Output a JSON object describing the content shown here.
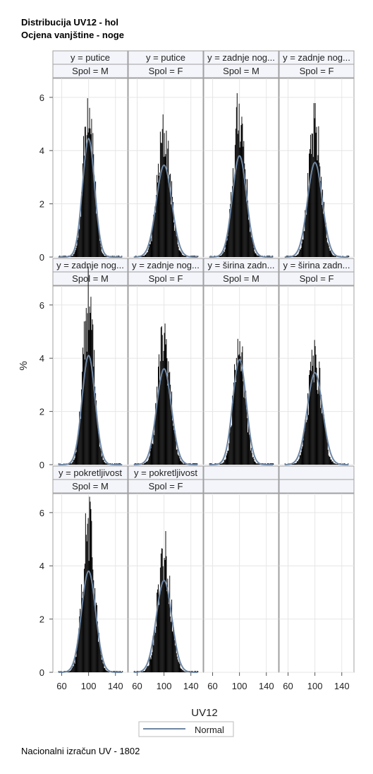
{
  "title_line1": "Distribucija UV12 - hol",
  "title_line2": "Ocjena vanjštine - noge",
  "footnote": "Nacionalni izračun UV - 1802",
  "colors": {
    "bars": "#000000",
    "normal_curve": "#6e86a3",
    "header_bg": "#f3f5fa",
    "grid": "#e6e6e6",
    "frame": "#a0a0a0"
  },
  "chart_data": {
    "type": "histogram-panel",
    "xlabel": "UV12",
    "ylabel": "%",
    "xlim": [
      50,
      155
    ],
    "ylim": [
      0,
      6.5
    ],
    "x_ticks": [
      60,
      100,
      140
    ],
    "y_ticks": [
      0,
      2,
      4,
      6
    ],
    "legend": {
      "entries": [
        "Normal"
      ],
      "placement": "bottom-center"
    },
    "grid": true,
    "panels": [
      {
        "y_label": "y = putice",
        "spol_label": "Spol = M",
        "mean": 100,
        "sd": 9,
        "peak_hist": 6.1,
        "peak_normal": 4.45
      },
      {
        "y_label": "y = putice",
        "spol_label": "Spol = F",
        "mean": 100,
        "sd": 11.5,
        "peak_hist": 4.65,
        "peak_normal": 3.45
      },
      {
        "y_label": "y = zadnje nog...",
        "spol_label": "Spol = M",
        "mean": 100,
        "sd": 10.5,
        "peak_hist": 5.5,
        "peak_normal": 3.8
      },
      {
        "y_label": "y = zadnje nog...",
        "spol_label": "Spol = F",
        "mean": 100,
        "sd": 11,
        "peak_hist": 4.85,
        "peak_normal": 3.55
      },
      {
        "y_label": "y = zadnje nog...",
        "spol_label": "Spol = M",
        "mean": 100,
        "sd": 9.7,
        "peak_hist": 6.15,
        "peak_normal": 4.1
      },
      {
        "y_label": "y = zadnje nog...",
        "spol_label": "Spol = F",
        "mean": 100,
        "sd": 11,
        "peak_hist": 4.85,
        "peak_normal": 3.6
      },
      {
        "y_label": "y = širina zadn...",
        "spol_label": "Spol = M",
        "mean": 100,
        "sd": 10,
        "peak_hist": 4.55,
        "peak_normal": 3.95
      },
      {
        "y_label": "y = širina zadn...",
        "spol_label": "Spol = F",
        "mean": 100,
        "sd": 11.5,
        "peak_hist": 4.05,
        "peak_normal": 3.45
      },
      {
        "y_label": "y = pokretljivost",
        "spol_label": "Spol = M",
        "mean": 100,
        "sd": 10.5,
        "peak_hist": 5.6,
        "peak_normal": 3.8
      },
      {
        "y_label": "y = pokretljivost",
        "spol_label": "Spol = F",
        "mean": 100,
        "sd": 11.5,
        "peak_hist": 4.55,
        "peak_normal": 3.45
      }
    ]
  }
}
